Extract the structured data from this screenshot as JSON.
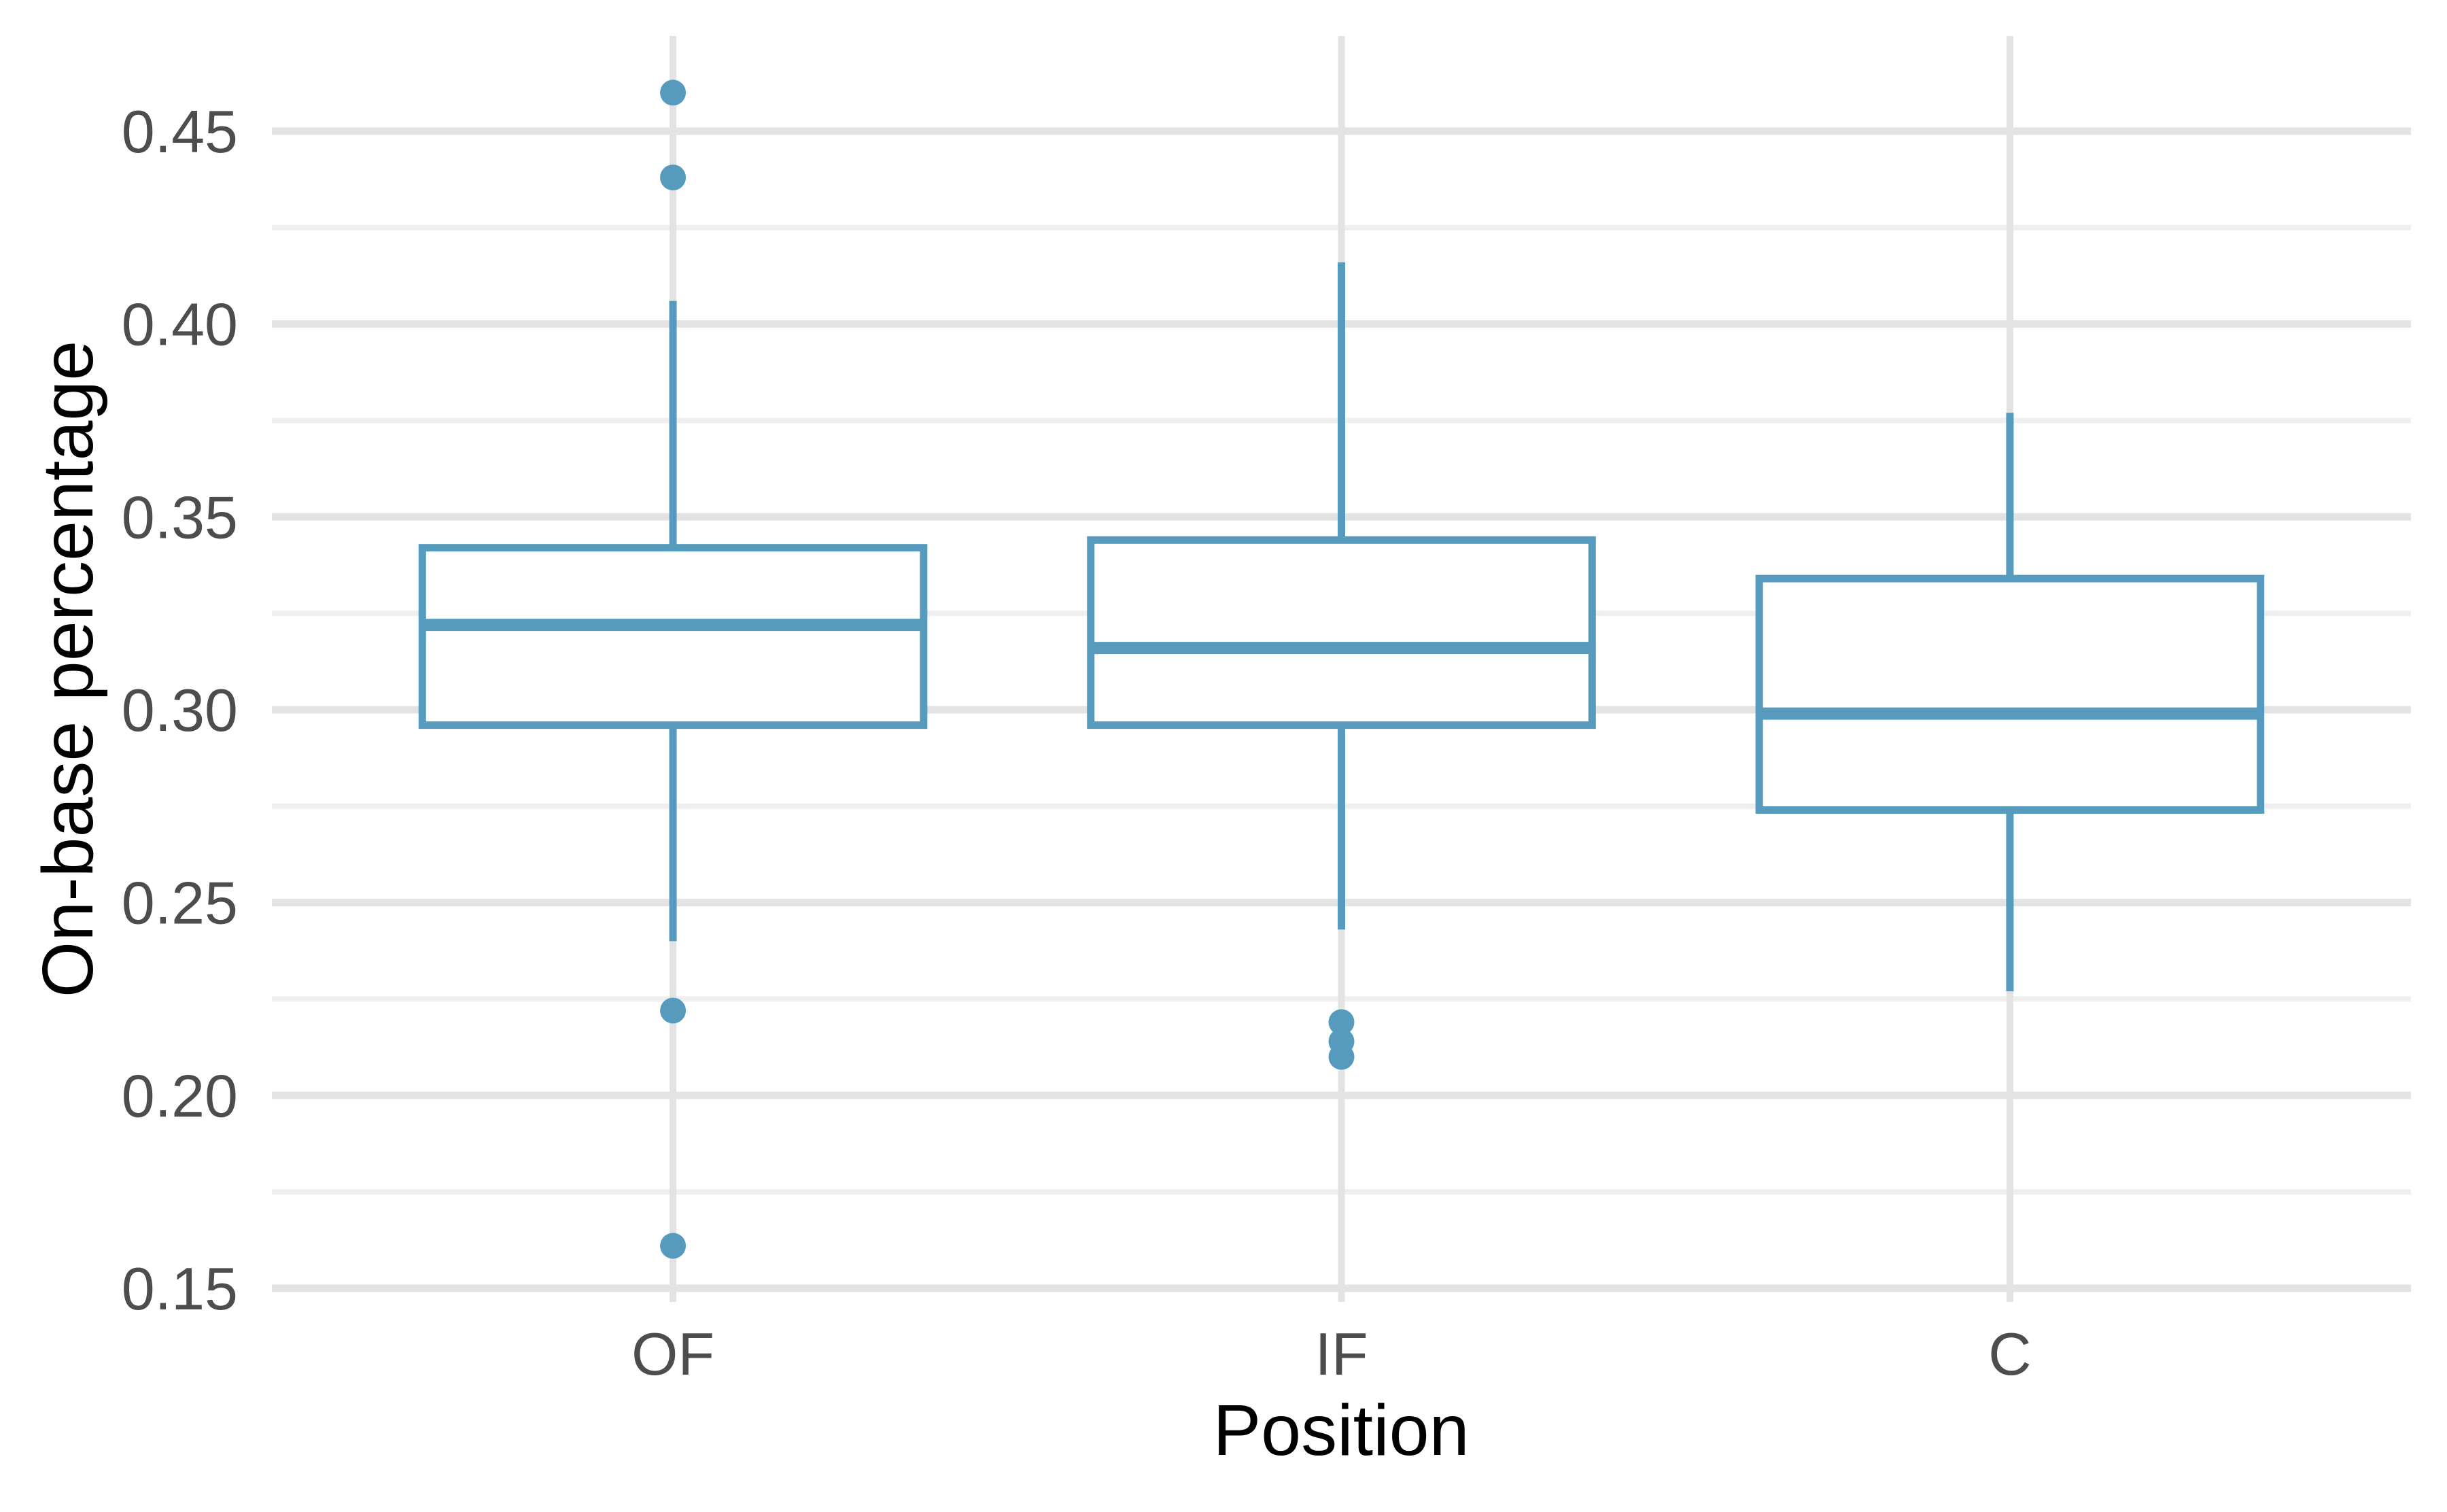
{
  "chart_data": {
    "type": "boxplot",
    "title": "",
    "xlabel": "Position",
    "ylabel": "On-base percentage",
    "categories": [
      "OF",
      "IF",
      "C"
    ],
    "series": [
      {
        "name": "OF",
        "whisker_low": 0.24,
        "q1": 0.296,
        "median": 0.322,
        "q3": 0.342,
        "whisker_high": 0.406,
        "outliers": [
          0.46,
          0.438,
          0.222,
          0.161
        ]
      },
      {
        "name": "IF",
        "whisker_low": 0.243,
        "q1": 0.296,
        "median": 0.316,
        "q3": 0.344,
        "whisker_high": 0.416,
        "outliers": [
          0.219,
          0.214,
          0.21
        ]
      },
      {
        "name": "C",
        "whisker_low": 0.227,
        "q1": 0.274,
        "median": 0.299,
        "q3": 0.334,
        "whisker_high": 0.377,
        "outliers": []
      }
    ],
    "y_axis": {
      "tick_values": [
        0.45,
        0.4,
        0.35,
        0.3,
        0.25,
        0.2,
        0.15
      ],
      "tick_labels": [
        "0.45",
        "0.40",
        "0.35",
        "0.30",
        "0.25",
        "0.20",
        "0.15"
      ],
      "minor_tick_values": [
        0.425,
        0.375,
        0.325,
        0.275,
        0.225,
        0.175
      ],
      "ylim": [
        0.147,
        0.475
      ]
    },
    "legend": "none",
    "grid": "on"
  },
  "style": {
    "box_color": "#569BBD",
    "outlier_color": "#569BBD",
    "grid_major_color": "#E3E3E3",
    "grid_minor_color": "#EFEFEF",
    "tick_label_color": "#4D4D4D",
    "axis_title_color": "#000000",
    "background_color": "#FFFFFF"
  }
}
